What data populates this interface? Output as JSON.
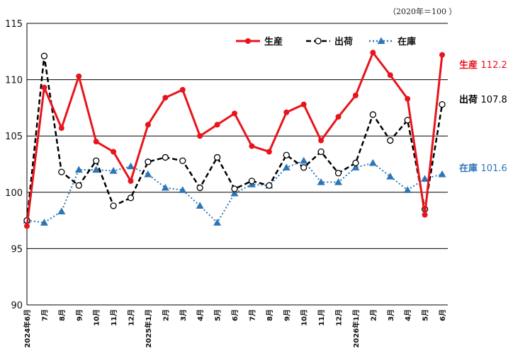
{
  "chart_data": {
    "type": "line",
    "note": "（2020年＝100 ）",
    "ylim": [
      90,
      115
    ],
    "yticks": [
      90,
      95,
      100,
      105,
      110,
      115
    ],
    "grid": true,
    "legend_position": "top-right",
    "categories": [
      "2024年6月",
      "7月",
      "8月",
      "9月",
      "10月",
      "11月",
      "12月",
      "2025年1月",
      "2月",
      "3月",
      "4月",
      "5月",
      "6月",
      "7月",
      "8月",
      "9月",
      "10月",
      "11月",
      "12月",
      "2026年1月",
      "2月",
      "3月",
      "4月",
      "5月",
      "6月"
    ],
    "series": [
      {
        "name": "生産",
        "color": "#e8141c",
        "line_style": "solid",
        "marker": "filled-circle",
        "values": [
          97.0,
          109.3,
          105.7,
          110.3,
          104.5,
          103.6,
          101.0,
          106.0,
          108.4,
          109.1,
          105.0,
          106.0,
          107.0,
          104.1,
          103.6,
          107.1,
          107.8,
          104.6,
          106.7,
          108.6,
          112.4,
          110.4,
          108.3,
          98.0,
          112.2
        ],
        "end_label": {
          "name": "生産",
          "value": "112.2"
        }
      },
      {
        "name": "出荷",
        "color": "#000000",
        "line_style": "dashed",
        "marker": "open-circle",
        "values": [
          97.5,
          112.1,
          101.8,
          100.6,
          102.8,
          98.8,
          99.5,
          102.7,
          103.1,
          102.8,
          100.4,
          103.1,
          100.3,
          101.0,
          100.6,
          103.3,
          102.2,
          103.6,
          101.7,
          102.6,
          106.9,
          104.6,
          106.4,
          98.5,
          107.8
        ],
        "end_label": {
          "name": "出荷",
          "value": "107.8"
        }
      },
      {
        "name": "在庫",
        "color": "#2e75b6",
        "line_style": "dotted",
        "marker": "filled-triangle",
        "values": [
          97.5,
          97.3,
          98.3,
          102.0,
          102.0,
          101.9,
          102.3,
          101.6,
          100.4,
          100.2,
          98.8,
          97.3,
          99.9,
          100.7,
          100.6,
          102.2,
          102.8,
          100.9,
          100.9,
          102.2,
          102.6,
          101.4,
          100.2,
          101.2,
          101.6
        ],
        "end_label": {
          "name": "在庫",
          "value": "101.6"
        }
      }
    ]
  }
}
